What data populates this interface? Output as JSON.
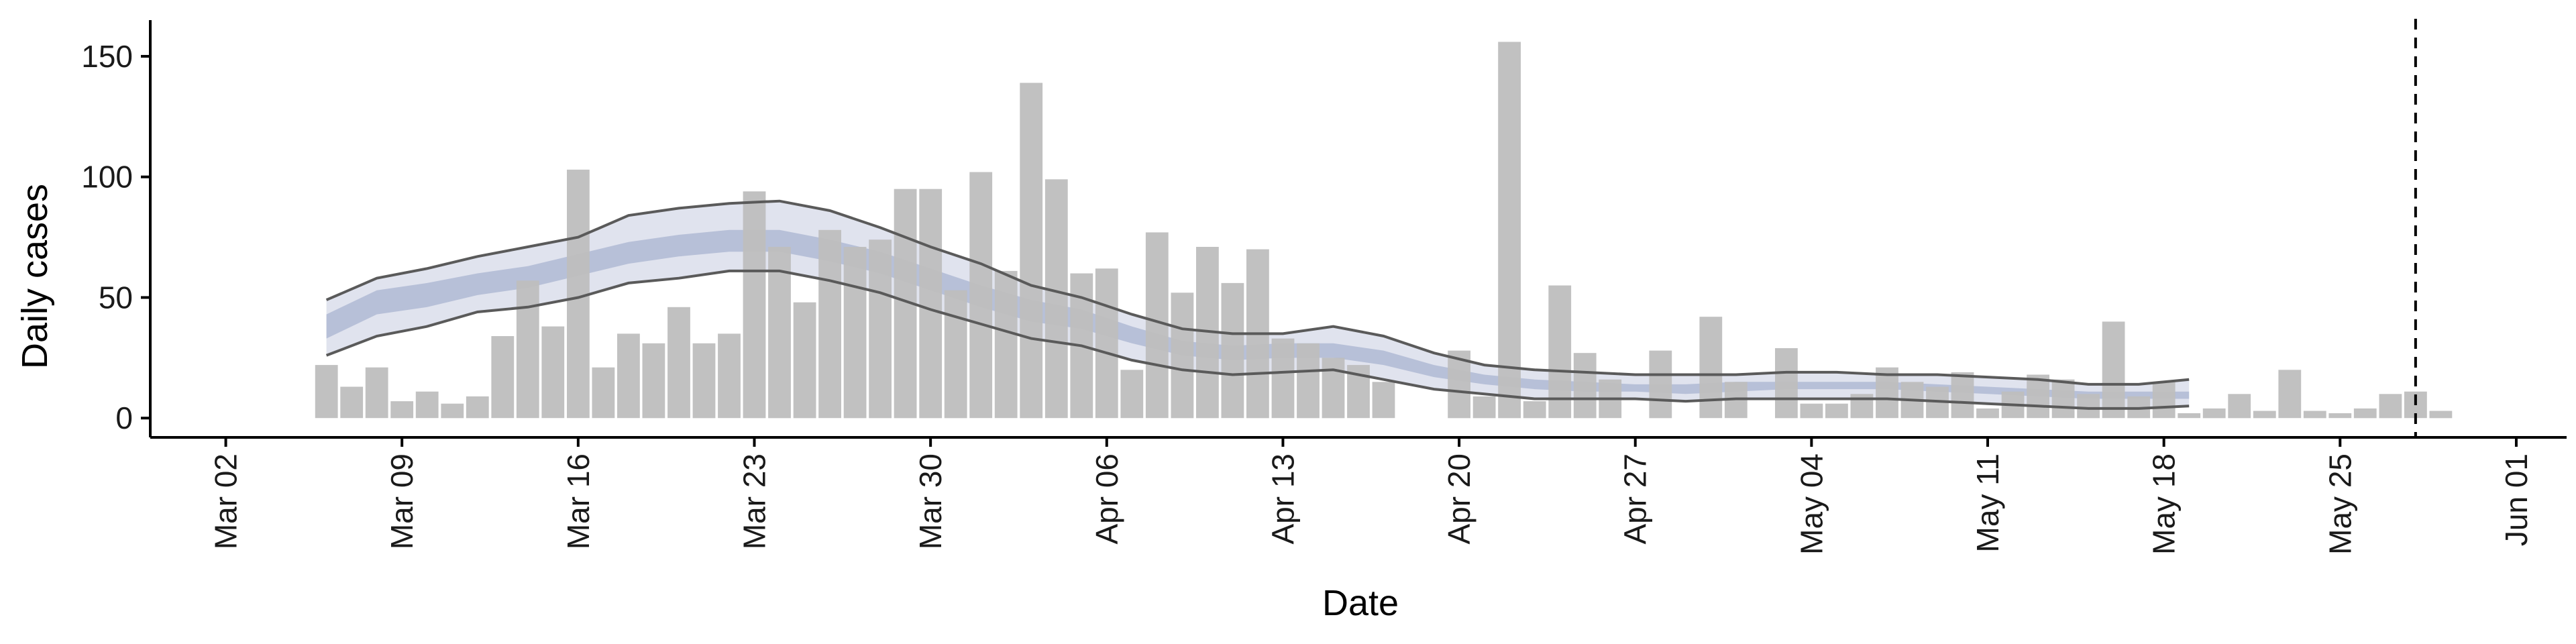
{
  "chart_data": {
    "type": "bar",
    "title": "",
    "xlabel": "Date",
    "ylabel": "Daily cases",
    "x_tick_labels": [
      "Mar 02",
      "Mar 09",
      "Mar 16",
      "Mar 23",
      "Mar 30",
      "Apr 06",
      "Apr 13",
      "Apr 20",
      "Apr 27",
      "May 04",
      "May 11",
      "May 18",
      "May 25",
      "Jun 01"
    ],
    "x_tick_dates": [
      "2020-03-02",
      "2020-03-09",
      "2020-03-16",
      "2020-03-23",
      "2020-03-30",
      "2020-04-06",
      "2020-04-13",
      "2020-04-20",
      "2020-04-27",
      "2020-05-04",
      "2020-05-11",
      "2020-05-18",
      "2020-05-25",
      "2020-06-01"
    ],
    "y_ticks": [
      0,
      50,
      100,
      150
    ],
    "xlim": [
      "2020-02-28",
      "2020-06-03"
    ],
    "ylim": [
      -8,
      165
    ],
    "grid": false,
    "legend": "none",
    "vline_date": "2020-05-28",
    "colors": {
      "bars": "#bebebe",
      "band_outer": "#d5d9e8",
      "band_inner": "#aab4d0",
      "bound_lines": "#5a5a5a",
      "axis": "#000000"
    },
    "daily_cases": [
      {
        "date": "2020-03-06",
        "value": 22
      },
      {
        "date": "2020-03-07",
        "value": 13
      },
      {
        "date": "2020-03-08",
        "value": 21
      },
      {
        "date": "2020-03-09",
        "value": 7
      },
      {
        "date": "2020-03-10",
        "value": 11
      },
      {
        "date": "2020-03-11",
        "value": 6
      },
      {
        "date": "2020-03-12",
        "value": 9
      },
      {
        "date": "2020-03-13",
        "value": 34
      },
      {
        "date": "2020-03-14",
        "value": 57
      },
      {
        "date": "2020-03-15",
        "value": 38
      },
      {
        "date": "2020-03-16",
        "value": 103
      },
      {
        "date": "2020-03-17",
        "value": 21
      },
      {
        "date": "2020-03-18",
        "value": 35
      },
      {
        "date": "2020-03-19",
        "value": 31
      },
      {
        "date": "2020-03-20",
        "value": 46
      },
      {
        "date": "2020-03-21",
        "value": 31
      },
      {
        "date": "2020-03-22",
        "value": 35
      },
      {
        "date": "2020-03-23",
        "value": 94
      },
      {
        "date": "2020-03-24",
        "value": 71
      },
      {
        "date": "2020-03-25",
        "value": 48
      },
      {
        "date": "2020-03-26",
        "value": 78
      },
      {
        "date": "2020-03-27",
        "value": 71
      },
      {
        "date": "2020-03-28",
        "value": 74
      },
      {
        "date": "2020-03-29",
        "value": 95
      },
      {
        "date": "2020-03-30",
        "value": 95
      },
      {
        "date": "2020-03-31",
        "value": 53
      },
      {
        "date": "2020-04-01",
        "value": 102
      },
      {
        "date": "2020-04-02",
        "value": 61
      },
      {
        "date": "2020-04-03",
        "value": 139
      },
      {
        "date": "2020-04-04",
        "value": 99
      },
      {
        "date": "2020-04-05",
        "value": 60
      },
      {
        "date": "2020-04-06",
        "value": 62
      },
      {
        "date": "2020-04-07",
        "value": 20
      },
      {
        "date": "2020-04-08",
        "value": 77
      },
      {
        "date": "2020-04-09",
        "value": 52
      },
      {
        "date": "2020-04-10",
        "value": 71
      },
      {
        "date": "2020-04-11",
        "value": 56
      },
      {
        "date": "2020-04-12",
        "value": 70
      },
      {
        "date": "2020-04-13",
        "value": 33
      },
      {
        "date": "2020-04-14",
        "value": 31
      },
      {
        "date": "2020-04-15",
        "value": 25
      },
      {
        "date": "2020-04-16",
        "value": 22
      },
      {
        "date": "2020-04-17",
        "value": 15
      },
      {
        "date": "2020-04-20",
        "value": 28
      },
      {
        "date": "2020-04-21",
        "value": 9
      },
      {
        "date": "2020-04-22",
        "value": 156
      },
      {
        "date": "2020-04-23",
        "value": 7
      },
      {
        "date": "2020-04-24",
        "value": 55
      },
      {
        "date": "2020-04-25",
        "value": 27
      },
      {
        "date": "2020-04-26",
        "value": 16
      },
      {
        "date": "2020-04-28",
        "value": 28
      },
      {
        "date": "2020-04-30",
        "value": 42
      },
      {
        "date": "2020-05-01",
        "value": 15
      },
      {
        "date": "2020-05-03",
        "value": 29
      },
      {
        "date": "2020-05-04",
        "value": 6
      },
      {
        "date": "2020-05-05",
        "value": 6
      },
      {
        "date": "2020-05-06",
        "value": 10
      },
      {
        "date": "2020-05-07",
        "value": 21
      },
      {
        "date": "2020-05-08",
        "value": 15
      },
      {
        "date": "2020-05-09",
        "value": 13
      },
      {
        "date": "2020-05-10",
        "value": 19
      },
      {
        "date": "2020-05-11",
        "value": 4
      },
      {
        "date": "2020-05-12",
        "value": 11
      },
      {
        "date": "2020-05-13",
        "value": 18
      },
      {
        "date": "2020-05-14",
        "value": 16
      },
      {
        "date": "2020-05-15",
        "value": 10
      },
      {
        "date": "2020-05-16",
        "value": 40
      },
      {
        "date": "2020-05-17",
        "value": 9
      },
      {
        "date": "2020-05-18",
        "value": 15
      },
      {
        "date": "2020-05-19",
        "value": 2
      },
      {
        "date": "2020-05-20",
        "value": 4
      },
      {
        "date": "2020-05-21",
        "value": 10
      },
      {
        "date": "2020-05-22",
        "value": 3
      },
      {
        "date": "2020-05-23",
        "value": 20
      },
      {
        "date": "2020-05-24",
        "value": 3
      },
      {
        "date": "2020-05-25",
        "value": 2
      },
      {
        "date": "2020-05-26",
        "value": 4
      },
      {
        "date": "2020-05-27",
        "value": 10
      },
      {
        "date": "2020-05-28",
        "value": 11
      },
      {
        "date": "2020-05-29",
        "value": 3
      }
    ],
    "estimate_band": [
      {
        "date": "2020-03-06",
        "outer_low": 26,
        "inner_low": 33,
        "inner_high": 43,
        "outer_high": 49
      },
      {
        "date": "2020-03-08",
        "outer_low": 34,
        "inner_low": 43,
        "inner_high": 53,
        "outer_high": 58
      },
      {
        "date": "2020-03-10",
        "outer_low": 38,
        "inner_low": 46,
        "inner_high": 56,
        "outer_high": 62
      },
      {
        "date": "2020-03-12",
        "outer_low": 44,
        "inner_low": 51,
        "inner_high": 60,
        "outer_high": 67
      },
      {
        "date": "2020-03-14",
        "outer_low": 46,
        "inner_low": 54,
        "inner_high": 63,
        "outer_high": 71
      },
      {
        "date": "2020-03-16",
        "outer_low": 50,
        "inner_low": 59,
        "inner_high": 68,
        "outer_high": 75
      },
      {
        "date": "2020-03-18",
        "outer_low": 56,
        "inner_low": 64,
        "inner_high": 73,
        "outer_high": 84
      },
      {
        "date": "2020-03-20",
        "outer_low": 58,
        "inner_low": 67,
        "inner_high": 76,
        "outer_high": 87
      },
      {
        "date": "2020-03-22",
        "outer_low": 61,
        "inner_low": 69,
        "inner_high": 78,
        "outer_high": 89
      },
      {
        "date": "2020-03-24",
        "outer_low": 61,
        "inner_low": 69,
        "inner_high": 78,
        "outer_high": 90
      },
      {
        "date": "2020-03-26",
        "outer_low": 57,
        "inner_low": 65,
        "inner_high": 74,
        "outer_high": 86
      },
      {
        "date": "2020-03-28",
        "outer_low": 52,
        "inner_low": 60,
        "inner_high": 69,
        "outer_high": 79
      },
      {
        "date": "2020-03-30",
        "outer_low": 45,
        "inner_low": 53,
        "inner_high": 62,
        "outer_high": 71
      },
      {
        "date": "2020-04-01",
        "outer_low": 39,
        "inner_low": 46,
        "inner_high": 55,
        "outer_high": 64
      },
      {
        "date": "2020-04-03",
        "outer_low": 33,
        "inner_low": 40,
        "inner_high": 49,
        "outer_high": 55
      },
      {
        "date": "2020-04-05",
        "outer_low": 30,
        "inner_low": 37,
        "inner_high": 45,
        "outer_high": 50
      },
      {
        "date": "2020-04-07",
        "outer_low": 24,
        "inner_low": 31,
        "inner_high": 38,
        "outer_high": 43
      },
      {
        "date": "2020-04-09",
        "outer_low": 20,
        "inner_low": 26,
        "inner_high": 32,
        "outer_high": 37
      },
      {
        "date": "2020-04-11",
        "outer_low": 18,
        "inner_low": 24,
        "inner_high": 30,
        "outer_high": 35
      },
      {
        "date": "2020-04-13",
        "outer_low": 19,
        "inner_low": 25,
        "inner_high": 31,
        "outer_high": 35
      },
      {
        "date": "2020-04-15",
        "outer_low": 20,
        "inner_low": 25,
        "inner_high": 31,
        "outer_high": 38
      },
      {
        "date": "2020-04-17",
        "outer_low": 16,
        "inner_low": 22,
        "inner_high": 28,
        "outer_high": 34
      },
      {
        "date": "2020-04-19",
        "outer_low": 12,
        "inner_low": 17,
        "inner_high": 22,
        "outer_high": 27
      },
      {
        "date": "2020-04-21",
        "outer_low": 10,
        "inner_low": 14,
        "inner_high": 18,
        "outer_high": 22
      },
      {
        "date": "2020-04-23",
        "outer_low": 8,
        "inner_low": 12,
        "inner_high": 16,
        "outer_high": 20
      },
      {
        "date": "2020-04-25",
        "outer_low": 8,
        "inner_low": 11,
        "inner_high": 15,
        "outer_high": 19
      },
      {
        "date": "2020-04-27",
        "outer_low": 8,
        "inner_low": 11,
        "inner_high": 14,
        "outer_high": 18
      },
      {
        "date": "2020-04-29",
        "outer_low": 7,
        "inner_low": 10,
        "inner_high": 14,
        "outer_high": 18
      },
      {
        "date": "2020-05-01",
        "outer_low": 8,
        "inner_low": 11,
        "inner_high": 15,
        "outer_high": 18
      },
      {
        "date": "2020-05-03",
        "outer_low": 8,
        "inner_low": 12,
        "inner_high": 15,
        "outer_high": 19
      },
      {
        "date": "2020-05-05",
        "outer_low": 8,
        "inner_low": 12,
        "inner_high": 15,
        "outer_high": 19
      },
      {
        "date": "2020-05-07",
        "outer_low": 8,
        "inner_low": 12,
        "inner_high": 15,
        "outer_high": 18
      },
      {
        "date": "2020-05-09",
        "outer_low": 7,
        "inner_low": 11,
        "inner_high": 14,
        "outer_high": 18
      },
      {
        "date": "2020-05-11",
        "outer_low": 6,
        "inner_low": 10,
        "inner_high": 13,
        "outer_high": 17
      },
      {
        "date": "2020-05-13",
        "outer_low": 5,
        "inner_low": 9,
        "inner_high": 12,
        "outer_high": 16
      },
      {
        "date": "2020-05-15",
        "outer_low": 4,
        "inner_low": 8,
        "inner_high": 11,
        "outer_high": 14
      },
      {
        "date": "2020-05-17",
        "outer_low": 4,
        "inner_low": 8,
        "inner_high": 11,
        "outer_high": 14
      },
      {
        "date": "2020-05-19",
        "outer_low": 5,
        "inner_low": 8,
        "inner_high": 11,
        "outer_high": 16
      }
    ]
  }
}
